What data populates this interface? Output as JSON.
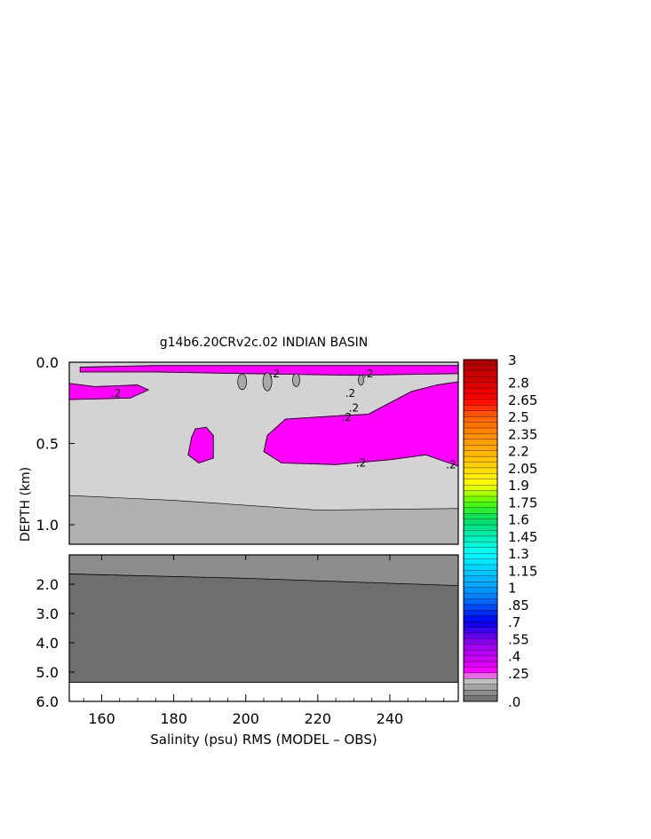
{
  "chart_data": {
    "type": "heatmap",
    "title": "g14b6.20CRv2c.02 INDIAN BASIN",
    "xlabel": "Salinity (psu) RMS (MODEL – OBS)",
    "ylabel": "DEPTH (km)",
    "xlim": [
      151,
      259
    ],
    "x_ticks": [
      "160",
      "180",
      "200",
      "220",
      "240"
    ],
    "x_tick_values": [
      160,
      180,
      200,
      220,
      240
    ],
    "upper_panel": {
      "ylim": [
        0.0,
        1.12
      ],
      "y_ticks": [
        "0.0",
        "0.5",
        "1.0"
      ],
      "y_tick_values": [
        0.0,
        0.5,
        1.0
      ]
    },
    "lower_panel": {
      "ylim": [
        1.0,
        6.0
      ],
      "y_ticks": [
        "2.0",
        "3.0",
        "4.0",
        "5.0",
        "6.0"
      ],
      "y_tick_values": [
        2.0,
        3.0,
        4.0,
        5.0,
        6.0
      ]
    },
    "contour_labels": [
      ".2",
      ".2",
      ".2",
      ".2",
      ".2",
      ".2",
      ".2",
      ".2"
    ],
    "colorbar": {
      "ticks": [
        "3",
        "2.8",
        "2.65",
        "2.5",
        "2.35",
        "2.2",
        "2.05",
        "1.9",
        "1.75",
        "1.6",
        "1.45",
        "1.3",
        "1.15",
        "1",
        ".85",
        ".7",
        ".55",
        ".4",
        ".25",
        ".0"
      ],
      "tick_values": [
        3,
        2.8,
        2.65,
        2.5,
        2.35,
        2.2,
        2.05,
        1.9,
        1.75,
        1.6,
        1.45,
        1.3,
        1.15,
        1,
        0.85,
        0.7,
        0.55,
        0.4,
        0.25,
        0.0
      ],
      "range": [
        0,
        3
      ],
      "color_stops": [
        {
          "v": 0.0,
          "c": "#696969"
        },
        {
          "v": 0.05,
          "c": "#808080"
        },
        {
          "v": 0.1,
          "c": "#989898"
        },
        {
          "v": 0.15,
          "c": "#b0b0b0"
        },
        {
          "v": 0.2,
          "c": "#d3d3d3"
        },
        {
          "v": 0.25,
          "c": "#ff00ff"
        },
        {
          "v": 0.5,
          "c": "#9900ee"
        },
        {
          "v": 0.7,
          "c": "#0000ee"
        },
        {
          "v": 0.95,
          "c": "#0090ff"
        },
        {
          "v": 1.3,
          "c": "#00ffff"
        },
        {
          "v": 1.6,
          "c": "#00dd66"
        },
        {
          "v": 1.75,
          "c": "#55ff00"
        },
        {
          "v": 1.9,
          "c": "#ffff00"
        },
        {
          "v": 2.2,
          "c": "#ffb000"
        },
        {
          "v": 2.5,
          "c": "#ff6000"
        },
        {
          "v": 2.65,
          "c": "#ff0000"
        },
        {
          "v": 3.0,
          "c": "#aa0000"
        }
      ]
    },
    "fill_colors": {
      "magenta": "#ff00ff",
      "light_gray": "#d3d3d3",
      "mid_gray": "#b0b0b0",
      "gray": "#8c8c8c",
      "dark_gray": "#6e6e6e"
    },
    "regions_upper": [
      {
        "name": "background",
        "value": 0.15
      },
      {
        "name": "deep-layer",
        "value": 0.12,
        "top_depth": [
          [
            151,
            0.82
          ],
          [
            180,
            0.85
          ],
          [
            220,
            0.91
          ],
          [
            259,
            0.9
          ]
        ]
      },
      {
        "name": "large-magenta-patch",
        "value": 0.25,
        "outline": [
          [
            211,
            0.35
          ],
          [
            225,
            0.33
          ],
          [
            234,
            0.32
          ],
          [
            246,
            0.18
          ],
          [
            253,
            0.14
          ],
          [
            259,
            0.12
          ],
          [
            259,
            0.64
          ],
          [
            250,
            0.57
          ],
          [
            240,
            0.6
          ],
          [
            225,
            0.63
          ],
          [
            210,
            0.62
          ],
          [
            205,
            0.55
          ],
          [
            206,
            0.45
          ]
        ]
      },
      {
        "name": "left-magenta-band",
        "value": 0.25,
        "outline": [
          [
            151,
            0.13
          ],
          [
            158,
            0.15
          ],
          [
            170,
            0.14
          ],
          [
            173,
            0.17
          ],
          [
            168,
            0.22
          ],
          [
            151,
            0.23
          ]
        ]
      },
      {
        "name": "small-magenta-blob",
        "value": 0.25,
        "outline": [
          [
            186,
            0.41
          ],
          [
            189,
            0.4
          ],
          [
            191,
            0.45
          ],
          [
            191,
            0.59
          ],
          [
            187,
            0.62
          ],
          [
            184,
            0.57
          ],
          [
            185,
            0.46
          ]
        ]
      },
      {
        "name": "surface-magenta-strip",
        "value": 0.25,
        "outline": [
          [
            154,
            0.03
          ],
          [
            175,
            0.02
          ],
          [
            200,
            0.02
          ],
          [
            230,
            0.02
          ],
          [
            259,
            0.02
          ],
          [
            259,
            0.07
          ],
          [
            230,
            0.08
          ],
          [
            200,
            0.07
          ],
          [
            175,
            0.06
          ],
          [
            154,
            0.06
          ]
        ]
      }
    ],
    "regions_lower": [
      {
        "name": "mid-depth",
        "value": 0.08
      },
      {
        "name": "abyss",
        "value": 0.03,
        "top_depth": [
          [
            151,
            1.65
          ],
          [
            200,
            1.8
          ],
          [
            259,
            2.05
          ]
        ]
      },
      {
        "name": "no-data",
        "value": null,
        "top_depth": [
          [
            151,
            5.35
          ],
          [
            259,
            5.35
          ]
        ]
      }
    ]
  }
}
